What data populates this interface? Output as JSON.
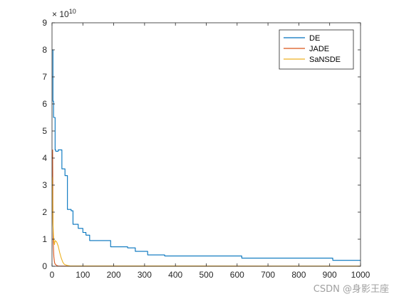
{
  "chart_data": {
    "type": "line",
    "title": "",
    "xlabel": "",
    "ylabel": "",
    "y_exponent_label": "× 10",
    "y_exponent_power": "10",
    "xlim": [
      0,
      1000
    ],
    "ylim": [
      0,
      9
    ],
    "x_ticks": [
      0,
      100,
      200,
      300,
      400,
      500,
      600,
      700,
      800,
      900,
      1000
    ],
    "y_ticks": [
      0,
      1,
      2,
      3,
      4,
      5,
      6,
      7,
      8,
      9
    ],
    "grid": false,
    "legend_position": "top-right",
    "series": [
      {
        "name": "DE",
        "color": "#0072BD",
        "x": [
          1,
          3,
          3,
          5,
          5,
          10,
          10,
          12,
          12,
          20,
          20,
          32,
          32,
          42,
          42,
          50,
          50,
          62,
          62,
          68,
          68,
          85,
          85,
          100,
          100,
          110,
          110,
          122,
          122,
          190,
          190,
          245,
          245,
          270,
          270,
          310,
          310,
          365,
          365,
          615,
          615,
          910,
          910,
          1000
        ],
        "y": [
          8.0,
          8.0,
          6.1,
          6.1,
          5.5,
          5.5,
          4.3,
          4.3,
          4.25,
          4.25,
          4.3,
          4.3,
          3.6,
          3.6,
          3.35,
          3.35,
          2.1,
          2.1,
          2.05,
          2.05,
          1.55,
          1.55,
          1.4,
          1.4,
          1.25,
          1.25,
          1.15,
          1.15,
          0.95,
          0.95,
          0.72,
          0.72,
          0.68,
          0.68,
          0.55,
          0.55,
          0.42,
          0.42,
          0.38,
          0.38,
          0.3,
          0.3,
          0.22,
          0.22
        ]
      },
      {
        "name": "JADE",
        "color": "#D95319",
        "x": [
          1,
          2,
          3,
          4,
          5,
          6,
          8,
          10,
          15,
          20,
          30,
          1000
        ],
        "y": [
          4.0,
          4.3,
          2.0,
          0.9,
          0.6,
          0.35,
          0.15,
          0.08,
          0.03,
          0.01,
          0.005,
          0.002
        ]
      },
      {
        "name": "SaNSDE",
        "color": "#EDB120",
        "x": [
          1,
          2,
          3,
          4,
          5,
          6,
          8,
          10,
          15,
          20,
          25,
          30,
          35,
          40,
          50,
          60,
          1000
        ],
        "y": [
          3.3,
          2.5,
          1.6,
          1.3,
          1.1,
          0.95,
          0.8,
          0.95,
          0.9,
          0.75,
          0.5,
          0.3,
          0.15,
          0.07,
          0.03,
          0.01,
          0.005
        ]
      }
    ]
  },
  "watermark": "CSDN @身影王座"
}
